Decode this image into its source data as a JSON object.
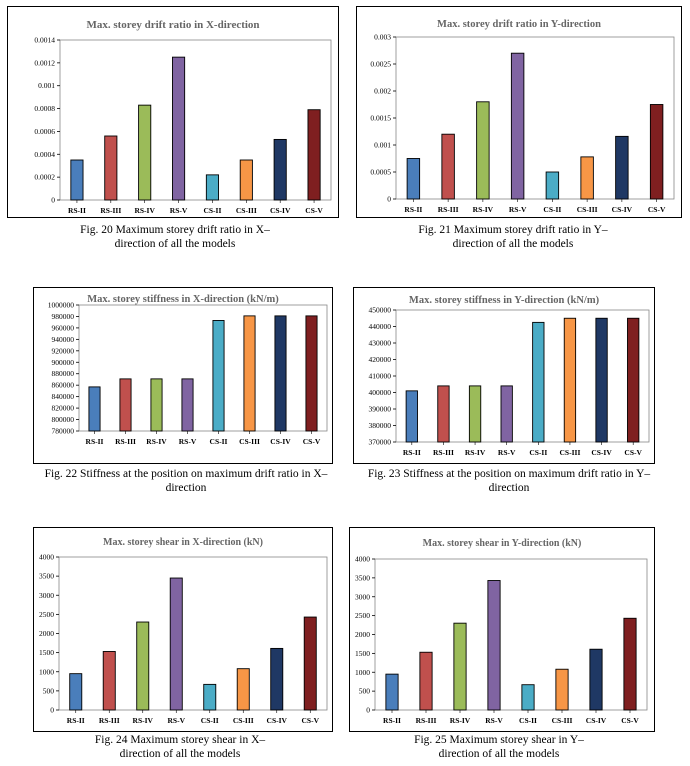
{
  "colors": {
    "RS-II": "#4a7ebb",
    "RS-III": "#c0504d",
    "RS-IV": "#9bbb59",
    "RS-V": "#8064a2",
    "CS-II": "#4bacc6",
    "CS-III": "#f79646",
    "CS-IV": "#1f3864",
    "CS-V": "#7f1f20"
  },
  "captions": {
    "fig20": "Fig. 20 Maximum storey drift ratio in X–direction of all the models",
    "fig21": "Fig. 21 Maximum storey drift ratio in Y–direction of all the models",
    "fig22": "Fig. 22 Stiffness at the position on maximum drift ratio in X–direction",
    "fig23": "Fig. 23 Stiffness at the position on maximum drift ratio in Y–direction",
    "fig24": "Fig. 24 Maximum storey shear in X–direction of all the models",
    "fig25": "Fig. 25 Maximum storey shear in Y–direction of all the models"
  },
  "chart_data": [
    {
      "type": "bar",
      "title": "Max. storey drift ratio in X-direction",
      "categories": [
        "RS-II",
        "RS-III",
        "RS-IV",
        "RS-V",
        "CS-II",
        "CS-III",
        "CS-IV",
        "CS-V"
      ],
      "values": [
        0.00035,
        0.00056,
        0.00083,
        0.00125,
        0.00022,
        0.00035,
        0.00053,
        0.00079
      ],
      "ylim": [
        0,
        0.0014
      ],
      "yticks": [
        "0",
        "0.0002",
        "0.0004",
        "0.0006",
        "0.0008",
        "0.001",
        "0.0012",
        "0.0014"
      ],
      "grid": false
    },
    {
      "type": "bar",
      "title": "Max. storey drift ratio in Y-direction",
      "categories": [
        "RS-II",
        "RS-III",
        "RS-IV",
        "RS-V",
        "CS-II",
        "CS-III",
        "CS-IV",
        "CS-V"
      ],
      "values": [
        0.00075,
        0.0012,
        0.0018,
        0.0027,
        0.0005,
        0.00078,
        0.00116,
        0.00175
      ],
      "ylim": [
        0,
        0.003
      ],
      "yticks": [
        "0",
        "0.0005",
        "0.001",
        "0.0015",
        "0.002",
        "0.0025",
        "0.003"
      ],
      "grid": false
    },
    {
      "type": "bar",
      "title": "Max. storey stiffness in X-direction (kN/m)",
      "categories": [
        "RS-II",
        "RS-III",
        "RS-IV",
        "RS-V",
        "CS-II",
        "CS-III",
        "CS-IV",
        "CS-V"
      ],
      "values": [
        857000,
        871000,
        871000,
        871000,
        973000,
        981000,
        981000,
        981000
      ],
      "ylim": [
        780000,
        1000000
      ],
      "yticks": [
        "780000",
        "800000",
        "820000",
        "840000",
        "860000",
        "880000",
        "900000",
        "920000",
        "940000",
        "960000",
        "980000",
        "1000000"
      ],
      "grid": false
    },
    {
      "type": "bar",
      "title": "Max. storey stiffness in Y-direction (kN/m)",
      "categories": [
        "RS-II",
        "RS-III",
        "RS-IV",
        "RS-V",
        "CS-II",
        "CS-III",
        "CS-IV",
        "CS-V"
      ],
      "values": [
        401000,
        404000,
        404000,
        404000,
        442500,
        445000,
        445000,
        445000
      ],
      "ylim": [
        370000,
        450000
      ],
      "yticks": [
        "370000",
        "380000",
        "390000",
        "400000",
        "410000",
        "420000",
        "430000",
        "440000",
        "450000"
      ],
      "grid": false
    },
    {
      "type": "bar",
      "title": "Max. storey shear in X-direction (kN)",
      "categories": [
        "RS-II",
        "RS-III",
        "RS-IV",
        "RS-V",
        "CS-II",
        "CS-III",
        "CS-IV",
        "CS-V"
      ],
      "values": [
        950,
        1530,
        2300,
        3450,
        670,
        1080,
        1610,
        2430
      ],
      "ylim": [
        0,
        4000
      ],
      "yticks": [
        "0",
        "500",
        "1000",
        "1500",
        "2000",
        "2500",
        "3000",
        "3500",
        "4000"
      ],
      "grid": false
    },
    {
      "type": "bar",
      "title": "Max. storey shear in Y-direction (kN)",
      "categories": [
        "RS-II",
        "RS-III",
        "RS-IV",
        "RS-V",
        "CS-II",
        "CS-III",
        "CS-IV",
        "CS-V"
      ],
      "values": [
        950,
        1530,
        2300,
        3430,
        670,
        1080,
        1610,
        2430
      ],
      "ylim": [
        0,
        4000
      ],
      "yticks": [
        "0",
        "500",
        "1000",
        "1500",
        "2000",
        "2500",
        "3000",
        "3500",
        "4000"
      ],
      "grid": false
    }
  ]
}
